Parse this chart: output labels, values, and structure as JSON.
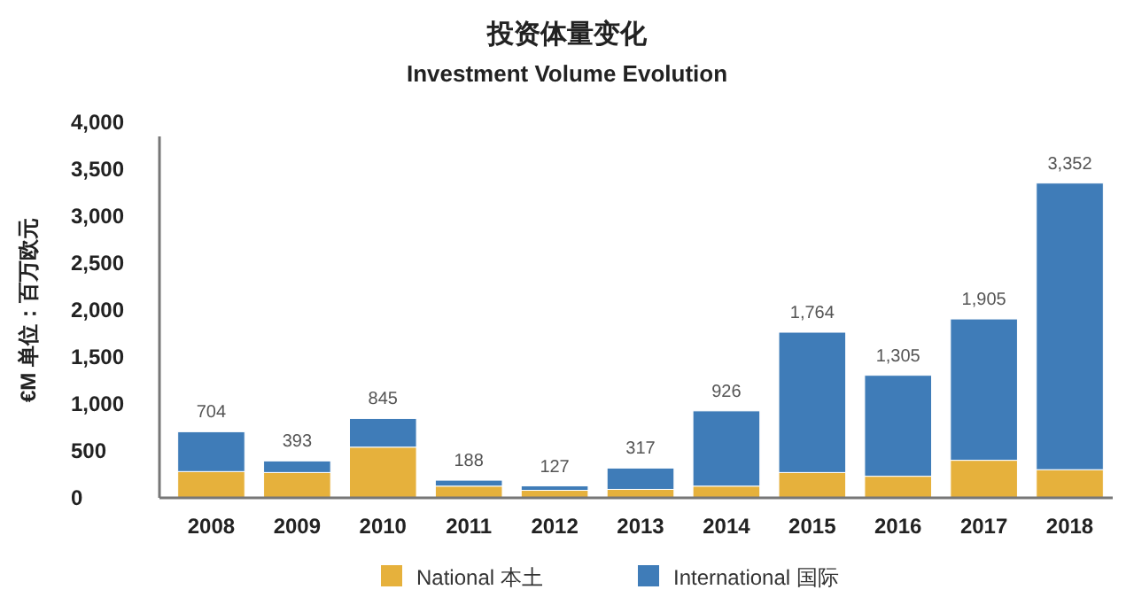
{
  "chart_data": {
    "type": "bar",
    "title": "投资体量变化",
    "subtitle": "Investment Volume Evolution",
    "ylabel": "€M  单位：百万欧元",
    "categories": [
      "2008",
      "2009",
      "2010",
      "2011",
      "2012",
      "2013",
      "2014",
      "2015",
      "2016",
      "2017",
      "2018"
    ],
    "stacked": true,
    "series": [
      {
        "name": "National 本土",
        "color": "#e6b13c",
        "values": [
          280,
          270,
          540,
          125,
          80,
          90,
          125,
          270,
          230,
          400,
          300
        ]
      },
      {
        "name": "International 国际",
        "color": "#3f7cb8",
        "values": [
          424,
          123,
          305,
          63,
          47,
          227,
          801,
          1494,
          1075,
          1505,
          3052
        ]
      }
    ],
    "totals": [
      "704",
      "393",
      "845",
      "188",
      "127",
      "317",
      "926",
      "1,764",
      "1,305",
      "1,905",
      "3,352"
    ],
    "ylim": [
      0,
      4000
    ],
    "yticks": [
      {
        "value": 0,
        "label": "0"
      },
      {
        "value": 500,
        "label": "500"
      },
      {
        "value": 1000,
        "label": "1,000"
      },
      {
        "value": 1500,
        "label": "1,500"
      },
      {
        "value": 2000,
        "label": "2,000"
      },
      {
        "value": 2500,
        "label": "2,500"
      },
      {
        "value": 3000,
        "label": "3,000"
      },
      {
        "value": 3500,
        "label": "3,500"
      },
      {
        "value": 4000,
        "label": "4,000"
      }
    ],
    "grid": false,
    "legend": "bottom"
  }
}
